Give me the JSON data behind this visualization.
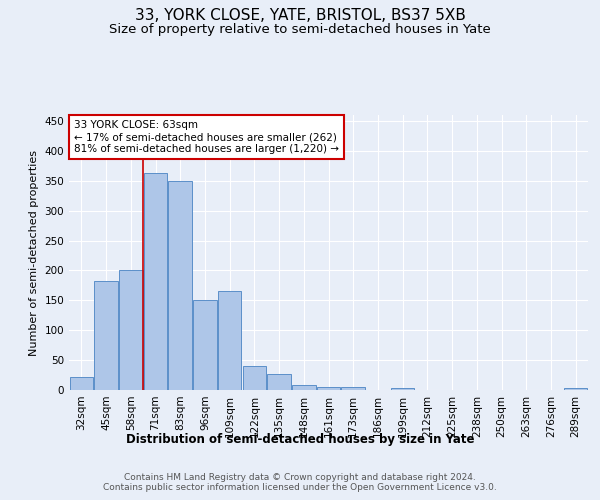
{
  "title1": "33, YORK CLOSE, YATE, BRISTOL, BS37 5XB",
  "title2": "Size of property relative to semi-detached houses in Yate",
  "xlabel": "Distribution of semi-detached houses by size in Yate",
  "ylabel": "Number of semi-detached properties",
  "categories": [
    "32sqm",
    "45sqm",
    "58sqm",
    "71sqm",
    "83sqm",
    "96sqm",
    "109sqm",
    "122sqm",
    "135sqm",
    "148sqm",
    "161sqm",
    "173sqm",
    "186sqm",
    "199sqm",
    "212sqm",
    "225sqm",
    "238sqm",
    "250sqm",
    "263sqm",
    "276sqm",
    "289sqm"
  ],
  "values": [
    22,
    183,
    201,
    363,
    350,
    151,
    165,
    40,
    27,
    8,
    5,
    5,
    0,
    4,
    0,
    0,
    0,
    0,
    0,
    0,
    4
  ],
  "bar_color": "#aec6e8",
  "bar_edge_color": "#5b8fc9",
  "annotation_text": "33 YORK CLOSE: 63sqm\n← 17% of semi-detached houses are smaller (262)\n81% of semi-detached houses are larger (1,220) →",
  "annotation_box_color": "#ffffff",
  "annotation_box_edge": "#cc0000",
  "vline_color": "#cc0000",
  "vline_x": 2.5,
  "ylim": [
    0,
    460
  ],
  "yticks": [
    0,
    50,
    100,
    150,
    200,
    250,
    300,
    350,
    400,
    450
  ],
  "background_color": "#e8eef8",
  "footer_text": "Contains HM Land Registry data © Crown copyright and database right 2024.\nContains public sector information licensed under the Open Government Licence v3.0.",
  "title1_fontsize": 11,
  "title2_fontsize": 9.5,
  "xlabel_fontsize": 8.5,
  "ylabel_fontsize": 8,
  "tick_fontsize": 7.5,
  "annotation_fontsize": 7.5,
  "footer_fontsize": 6.5
}
